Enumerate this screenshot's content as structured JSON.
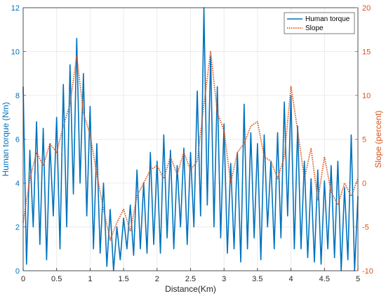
{
  "chart_data": {
    "type": "line",
    "xlabel": "Distance(Km)",
    "ylabel_left": "Human torque (Nm)",
    "ylabel_right": "Slope (percent)",
    "xlim": [
      0,
      5
    ],
    "ylim_left": [
      0,
      12
    ],
    "ylim_right": [
      -10,
      20
    ],
    "x_ticks": [
      0,
      0.5,
      1,
      1.5,
      2,
      2.5,
      3,
      3.5,
      4,
      4.5,
      5
    ],
    "y_ticks_left": [
      0,
      2,
      4,
      6,
      8,
      10,
      12
    ],
    "y_ticks_right": [
      -10,
      -5,
      0,
      5,
      10,
      15,
      20
    ],
    "x_tick_labels": [
      "0",
      "0.5",
      "1",
      "1.5",
      "2",
      "2.5",
      "3",
      "3.5",
      "4",
      "4.5",
      "5"
    ],
    "y_tick_labels_left": [
      "0",
      "2",
      "4",
      "6",
      "8",
      "10",
      "12"
    ],
    "y_tick_labels_right": [
      "-10",
      "-5",
      "0",
      "5",
      "10",
      "15",
      "20"
    ],
    "grid": true,
    "legend_position": "top-right",
    "colors": {
      "torque": "#0072BD",
      "slope": "#D95319",
      "grid": "#e6e6e6",
      "axis": "#262626"
    },
    "series": [
      {
        "name": "Human torque",
        "axis": "left",
        "style": "solid",
        "x": [
          0,
          0.05,
          0.1,
          0.15,
          0.2,
          0.25,
          0.3,
          0.35,
          0.4,
          0.45,
          0.5,
          0.55,
          0.6,
          0.65,
          0.7,
          0.75,
          0.8,
          0.85,
          0.9,
          0.95,
          1.0,
          1.05,
          1.1,
          1.15,
          1.2,
          1.25,
          1.3,
          1.35,
          1.4,
          1.45,
          1.5,
          1.55,
          1.6,
          1.65,
          1.7,
          1.75,
          1.8,
          1.85,
          1.9,
          1.95,
          2.0,
          2.05,
          2.1,
          2.15,
          2.2,
          2.25,
          2.3,
          2.35,
          2.4,
          2.45,
          2.5,
          2.55,
          2.6,
          2.65,
          2.7,
          2.75,
          2.8,
          2.85,
          2.9,
          2.95,
          3.0,
          3.05,
          3.1,
          3.15,
          3.2,
          3.25,
          3.3,
          3.35,
          3.4,
          3.45,
          3.5,
          3.55,
          3.6,
          3.65,
          3.7,
          3.75,
          3.8,
          3.85,
          3.9,
          3.95,
          4.0,
          4.05,
          4.1,
          4.15,
          4.2,
          4.25,
          4.3,
          4.35,
          4.4,
          4.45,
          4.5,
          4.55,
          4.6,
          4.65,
          4.7,
          4.75,
          4.8,
          4.85,
          4.9,
          4.95,
          5.0
        ],
        "values": [
          8.4,
          0.3,
          5.5,
          2.0,
          6.8,
          1.2,
          6.5,
          0.5,
          5.8,
          2.5,
          7.0,
          1.0,
          8.5,
          2.0,
          9.4,
          3.5,
          10.6,
          4.0,
          9.0,
          2.5,
          7.5,
          1.0,
          5.8,
          0.8,
          4.0,
          0.2,
          2.8,
          0.0,
          2.0,
          0.5,
          2.4,
          1.0,
          3.0,
          0.7,
          4.6,
          1.0,
          4.0,
          0.8,
          5.4,
          1.2,
          5.0,
          0.8,
          6.2,
          1.5,
          5.5,
          1.0,
          4.8,
          2.0,
          5.6,
          1.2,
          5.4,
          2.0,
          8.2,
          2.5,
          12.0,
          3.0,
          9.8,
          2.0,
          8.4,
          1.5,
          6.7,
          0.8,
          4.9,
          1.0,
          5.4,
          0.4,
          7.6,
          1.0,
          6.3,
          1.5,
          5.8,
          0.5,
          6.2,
          2.0,
          5.0,
          1.0,
          6.3,
          1.5,
          7.7,
          2.5,
          8.0,
          1.0,
          6.6,
          1.0,
          5.0,
          0.6,
          4.2,
          0.4,
          4.6,
          0.3,
          4.1,
          1.0,
          4.8,
          0.6,
          5.0,
          0.0,
          3.8,
          0.5,
          6.2,
          0.0,
          3.4
        ]
      },
      {
        "name": "Slope",
        "axis": "right",
        "style": "dotted",
        "x": [
          0,
          0.1,
          0.2,
          0.3,
          0.4,
          0.5,
          0.6,
          0.7,
          0.8,
          0.9,
          1.0,
          1.1,
          1.2,
          1.3,
          1.4,
          1.5,
          1.6,
          1.7,
          1.8,
          1.9,
          2.0,
          2.1,
          2.2,
          2.3,
          2.4,
          2.5,
          2.6,
          2.7,
          2.8,
          2.9,
          3.0,
          3.1,
          3.2,
          3.3,
          3.4,
          3.5,
          3.6,
          3.7,
          3.8,
          3.9,
          4.0,
          4.1,
          4.2,
          4.3,
          4.4,
          4.5,
          4.6,
          4.7,
          4.8,
          4.9,
          5.0
        ],
        "values": [
          -4.5,
          0.5,
          3.5,
          2.0,
          4.5,
          3.5,
          6.5,
          9.0,
          14.5,
          8.0,
          5.5,
          1.0,
          -3.0,
          -6.5,
          -4.5,
          -3.0,
          -5.5,
          -1.5,
          0.0,
          1.5,
          2.0,
          0.5,
          3.0,
          1.0,
          3.5,
          1.5,
          2.5,
          9.0,
          15.0,
          8.0,
          6.0,
          0.0,
          3.5,
          4.5,
          6.5,
          7.0,
          3.0,
          2.5,
          0.5,
          3.0,
          11.0,
          6.0,
          0.5,
          4.0,
          -2.0,
          3.0,
          -1.0,
          -2.5,
          0.0,
          -1.5,
          0.5
        ]
      }
    ]
  }
}
